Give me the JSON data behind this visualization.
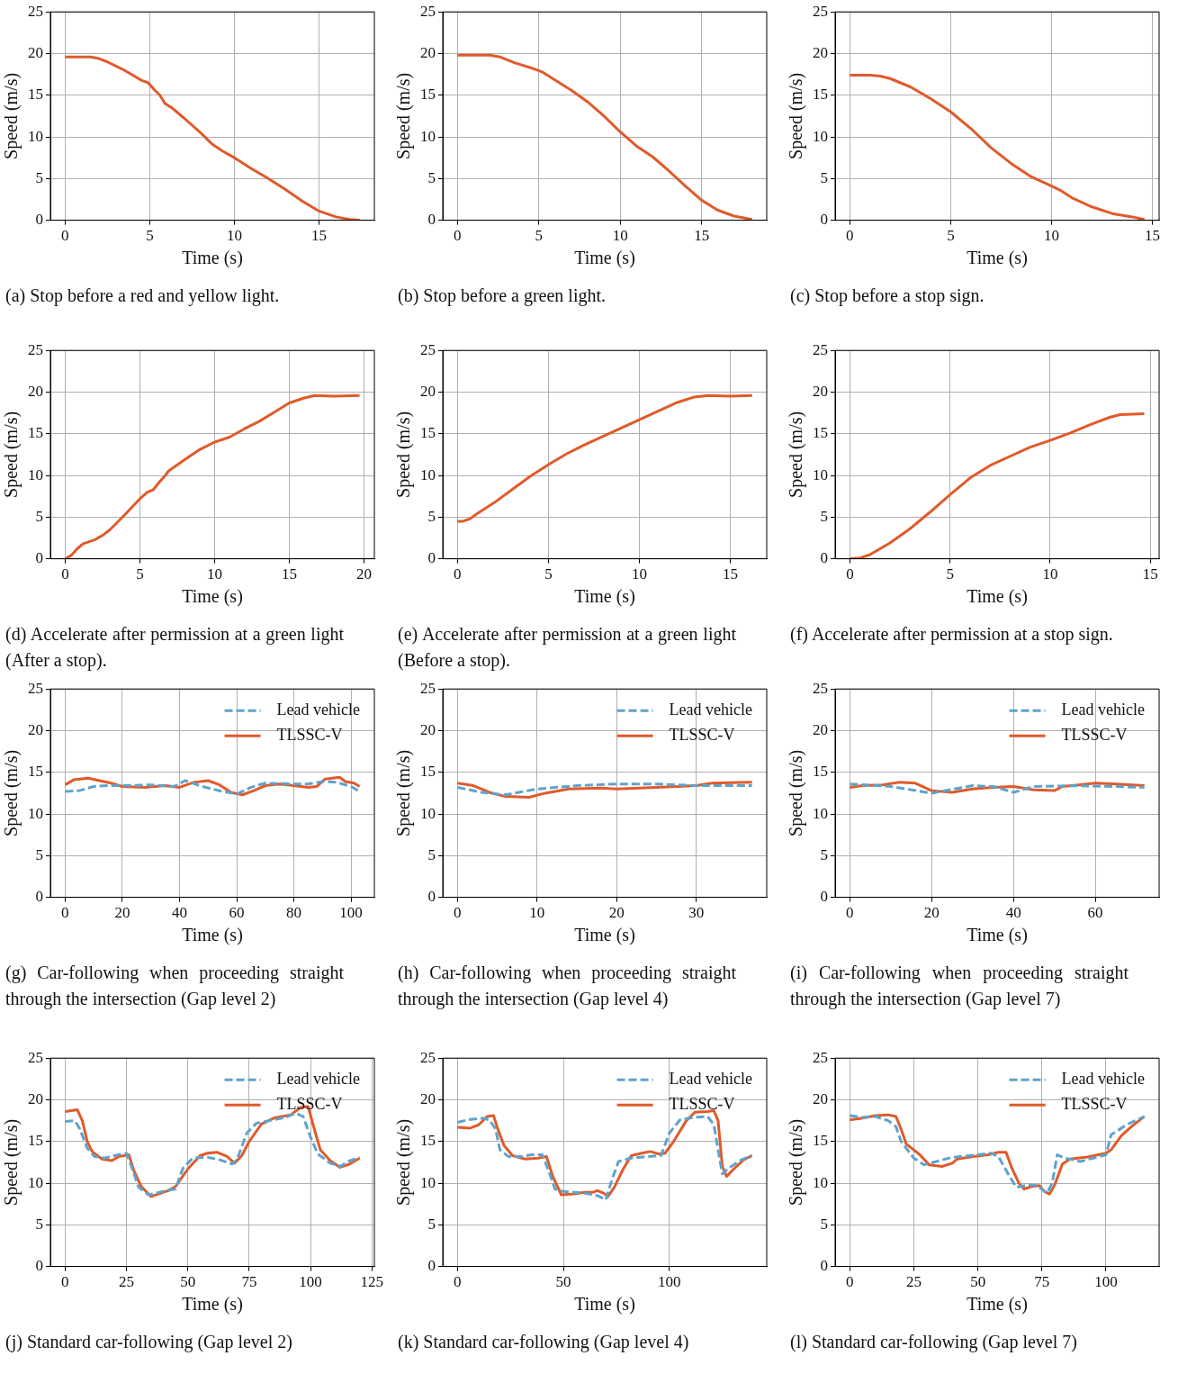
{
  "chart_data": [
    {
      "type": "line",
      "title": "(a) Stop before a red and yellow light.",
      "xlabel": "Time (s)",
      "ylabel": "Speed (m/s)",
      "xlim": [
        -0.87,
        18.27
      ],
      "xticks": [
        0,
        5,
        10,
        15
      ],
      "ylim": [
        0,
        25
      ],
      "yticks": [
        0,
        5,
        10,
        15,
        20,
        25
      ],
      "grid": true,
      "series": [
        {
          "color": "#e05a2b",
          "x": [
            0,
            1,
            1.5,
            2,
            2.5,
            3,
            3.5,
            4,
            4.5,
            4.9,
            5.3,
            5.6,
            5.9,
            6.3,
            7,
            8,
            8.7,
            9.3,
            10,
            11,
            12,
            13,
            14,
            15,
            16,
            16.8,
            17.4
          ],
          "values": [
            19.6,
            19.6,
            19.6,
            19.4,
            19.0,
            18.5,
            18.0,
            17.4,
            16.8,
            16.5,
            15.6,
            15.0,
            14.0,
            13.5,
            12.3,
            10.5,
            9.1,
            8.3,
            7.5,
            6.2,
            5.0,
            3.7,
            2.3,
            1.1,
            0.4,
            0.1,
            0
          ]
        }
      ]
    },
    {
      "type": "line",
      "title": "(b) Stop before a green light.",
      "xlabel": "Time (s)",
      "ylabel": "Speed (m/s)",
      "xlim": [
        -0.9,
        19.0
      ],
      "xticks": [
        0,
        5,
        10,
        15
      ],
      "ylim": [
        0,
        25
      ],
      "yticks": [
        0,
        5,
        10,
        15,
        20,
        25
      ],
      "grid": true,
      "series": [
        {
          "color": "#e05a2b",
          "x": [
            0,
            1,
            2,
            2.6,
            3.5,
            4.5,
            5.2,
            6,
            7,
            8,
            9,
            10,
            11,
            12,
            13,
            14,
            15,
            16,
            17,
            18.1
          ],
          "values": [
            19.8,
            19.8,
            19.8,
            19.6,
            18.9,
            18.3,
            17.8,
            16.8,
            15.6,
            14.2,
            12.5,
            10.6,
            8.9,
            7.6,
            5.9,
            4.1,
            2.4,
            1.2,
            0.5,
            0.1
          ]
        }
      ]
    },
    {
      "type": "line",
      "title": "(c) Stop before a stop sign.",
      "xlabel": "Time (s)",
      "ylabel": "Speed (m/s)",
      "xlim": [
        -0.73,
        15.33
      ],
      "xticks": [
        0,
        5,
        10,
        15
      ],
      "ylim": [
        0,
        25
      ],
      "yticks": [
        0,
        5,
        10,
        15,
        20,
        25
      ],
      "grid": true,
      "series": [
        {
          "color": "#e05a2b",
          "x": [
            0,
            1,
            1.5,
            2,
            3,
            4,
            5,
            6,
            7,
            8,
            9,
            10,
            10.5,
            11,
            12,
            13,
            14,
            14.6
          ],
          "values": [
            17.4,
            17.4,
            17.3,
            17.0,
            16.0,
            14.6,
            13.0,
            11.0,
            8.7,
            6.8,
            5.2,
            4.1,
            3.5,
            2.7,
            1.6,
            0.8,
            0.4,
            0.1
          ]
        }
      ]
    },
    {
      "type": "line",
      "title": "(d) Accelerate after permission at a green light (After a stop).",
      "xlabel": "Time (s)",
      "ylabel": "Speed (m/s)",
      "xlim": [
        -0.99,
        20.69
      ],
      "xticks": [
        0,
        5,
        10,
        15,
        20
      ],
      "ylim": [
        0,
        25
      ],
      "yticks": [
        0,
        5,
        10,
        15,
        20,
        25
      ],
      "grid": true,
      "series": [
        {
          "color": "#e05a2b",
          "x": [
            0,
            0.4,
            0.8,
            1.2,
            2,
            2.5,
            3,
            4,
            5,
            5.5,
            5.9,
            6.3,
            6.7,
            6.9,
            7.2,
            8,
            9,
            10,
            11,
            12,
            13,
            14,
            15,
            16,
            16.7,
            18,
            19.7
          ],
          "values": [
            0,
            0.4,
            1.2,
            1.8,
            2.3,
            2.8,
            3.5,
            5.3,
            7.2,
            8.0,
            8.3,
            9.2,
            10.0,
            10.5,
            10.9,
            11.9,
            13.1,
            14.0,
            14.6,
            15.6,
            16.5,
            17.6,
            18.7,
            19.3,
            19.6,
            19.5,
            19.6
          ]
        }
      ]
    },
    {
      "type": "line",
      "title": "(e) Accelerate after permission at a green light (Before a stop).",
      "xlabel": "Time (s)",
      "ylabel": "Speed (m/s)",
      "xlim": [
        -0.81,
        17.0
      ],
      "xticks": [
        0,
        5,
        10,
        15
      ],
      "ylim": [
        0,
        25
      ],
      "yticks": [
        0,
        5,
        10,
        15,
        20,
        25
      ],
      "grid": true,
      "series": [
        {
          "color": "#e05a2b",
          "x": [
            0,
            0.3,
            0.7,
            1,
            2,
            3,
            4,
            5,
            6,
            7,
            8,
            9,
            10,
            11,
            12,
            13,
            13.8,
            15,
            16.2
          ],
          "values": [
            4.5,
            4.5,
            4.8,
            5.3,
            6.7,
            8.3,
            9.9,
            11.3,
            12.6,
            13.7,
            14.7,
            15.7,
            16.7,
            17.7,
            18.7,
            19.4,
            19.6,
            19.5,
            19.6
          ]
        }
      ]
    },
    {
      "type": "line",
      "title": "(f) Accelerate after permission at a stop sign.",
      "xlabel": "Time (s)",
      "ylabel": "Speed (m/s)",
      "xlim": [
        -0.74,
        15.44
      ],
      "xticks": [
        0,
        5,
        10,
        15
      ],
      "ylim": [
        0,
        25
      ],
      "yticks": [
        0,
        5,
        10,
        15,
        20,
        25
      ],
      "grid": true,
      "series": [
        {
          "color": "#e05a2b",
          "x": [
            0,
            0.5,
            1,
            2,
            3,
            4,
            5,
            6,
            7,
            8,
            9,
            10,
            11,
            12,
            13,
            13.5,
            14.7
          ],
          "values": [
            0,
            0.1,
            0.5,
            1.9,
            3.6,
            5.6,
            7.7,
            9.7,
            11.2,
            12.3,
            13.4,
            14.2,
            15.1,
            16.1,
            17.0,
            17.3,
            17.4
          ]
        }
      ]
    },
    {
      "type": "line",
      "title": "(g) Car-following when proceeding straight through the intersection (Gap level 2)",
      "xlabel": "Time (s)",
      "ylabel": "Speed (m/s)",
      "xlim": [
        -5.15,
        108.15
      ],
      "xticks": [
        0,
        20,
        40,
        60,
        80,
        100
      ],
      "ylim": [
        0,
        25
      ],
      "yticks": [
        0,
        5,
        10,
        15,
        20,
        25
      ],
      "grid": true,
      "legend": "top right",
      "series": [
        {
          "name": "Lead vehicle",
          "color": "#5fa3cc",
          "line_style": "dashed",
          "x": [
            0,
            5,
            10,
            15,
            20,
            30,
            38,
            42,
            48,
            55,
            60,
            65,
            70,
            80,
            85,
            90,
            95,
            100,
            103
          ],
          "values": [
            12.7,
            12.8,
            13.3,
            13.4,
            13.4,
            13.5,
            13.3,
            14.0,
            13.3,
            12.7,
            12.4,
            13.2,
            13.7,
            13.6,
            13.6,
            13.9,
            13.8,
            13.3,
            12.7
          ]
        },
        {
          "name": "TLSSC-V",
          "color": "#e05a2b",
          "line_style": "solid",
          "x": [
            0,
            3,
            8,
            12,
            16,
            20,
            28,
            35,
            40,
            45,
            50,
            54,
            58,
            62,
            66,
            70,
            75,
            80,
            85,
            88,
            91,
            96,
            98,
            101,
            103
          ],
          "values": [
            13.5,
            14.1,
            14.3,
            14.0,
            13.7,
            13.3,
            13.2,
            13.4,
            13.2,
            13.8,
            14.0,
            13.5,
            12.6,
            12.3,
            12.8,
            13.4,
            13.6,
            13.4,
            13.2,
            13.3,
            14.2,
            14.4,
            13.9,
            13.7,
            13.3
          ]
        }
      ]
    },
    {
      "type": "line",
      "title": "(h) Car-following when proceeding straight through the intersection (Gap level 4)",
      "xlabel": "Time (s)",
      "ylabel": "Speed (m/s)",
      "xlim": [
        -1.85,
        38.85
      ],
      "xticks": [
        0,
        10,
        20,
        30
      ],
      "ylim": [
        0,
        25
      ],
      "yticks": [
        0,
        5,
        10,
        15,
        20,
        25
      ],
      "grid": true,
      "legend": "top right",
      "series": [
        {
          "name": "Lead vehicle",
          "color": "#5fa3cc",
          "line_style": "dashed",
          "x": [
            0,
            3,
            6,
            10,
            15,
            20,
            25,
            30,
            37
          ],
          "values": [
            13.2,
            12.6,
            12.3,
            13.0,
            13.4,
            13.6,
            13.6,
            13.4,
            13.4
          ]
        },
        {
          "name": "TLSSC-V",
          "color": "#e05a2b",
          "line_style": "solid",
          "x": [
            0,
            2,
            4,
            6,
            9,
            11,
            14,
            18,
            20,
            25,
            30,
            32,
            37
          ],
          "values": [
            13.7,
            13.4,
            12.6,
            12.1,
            12.0,
            12.5,
            13.0,
            13.1,
            13.0,
            13.2,
            13.4,
            13.7,
            13.8
          ]
        }
      ]
    },
    {
      "type": "line",
      "title": "(i) Car-following when proceeding straight through the intersection (Gap level 7)",
      "xlabel": "Time (s)",
      "ylabel": "Speed (m/s)",
      "xlim": [
        -3.6,
        75.6
      ],
      "xticks": [
        0,
        20,
        40,
        60
      ],
      "ylim": [
        0,
        25
      ],
      "yticks": [
        0,
        5,
        10,
        15,
        20,
        25
      ],
      "grid": true,
      "legend": "top right",
      "series": [
        {
          "name": "Lead vehicle",
          "color": "#5fa3cc",
          "line_style": "dashed",
          "x": [
            0,
            10,
            20,
            30,
            35,
            40,
            45,
            55,
            65,
            72
          ],
          "values": [
            13.6,
            13.3,
            12.5,
            13.4,
            13.3,
            12.6,
            13.3,
            13.4,
            13.3,
            13.2
          ]
        },
        {
          "name": "TLSSC-V",
          "color": "#e05a2b",
          "line_style": "solid",
          "x": [
            0,
            3,
            8,
            12,
            16,
            20,
            25,
            30,
            35,
            40,
            45,
            50,
            52,
            56,
            60,
            65,
            72
          ],
          "values": [
            13.2,
            13.4,
            13.5,
            13.8,
            13.7,
            12.8,
            12.6,
            13.0,
            13.2,
            13.3,
            12.9,
            12.8,
            13.3,
            13.5,
            13.7,
            13.6,
            13.4
          ]
        }
      ]
    },
    {
      "type": "line",
      "title": "(j) Standard car-following (Gap level 2)",
      "xlabel": "Time (s)",
      "ylabel": "Speed (m/s)",
      "xlim": [
        -6,
        126
      ],
      "xticks": [
        0,
        25,
        50,
        75,
        100,
        125
      ],
      "ylim": [
        0,
        25
      ],
      "yticks": [
        0,
        5,
        10,
        15,
        20,
        25
      ],
      "grid": true,
      "legend": "top right",
      "series": [
        {
          "name": "Lead vehicle",
          "color": "#5fa3cc",
          "line_style": "dashed",
          "x": [
            0,
            4,
            6,
            9,
            12,
            16,
            20,
            25,
            27,
            30,
            34,
            40,
            45,
            48,
            52,
            58,
            63,
            68,
            70,
            74,
            78,
            85,
            90,
            94,
            97,
            100,
            103,
            108,
            112,
            116,
            120
          ],
          "values": [
            17.4,
            17.5,
            16.5,
            14.2,
            13.2,
            13.0,
            13.3,
            13.6,
            12.0,
            9.5,
            8.6,
            9.0,
            9.3,
            11.8,
            13.0,
            13.1,
            12.8,
            12.3,
            12.8,
            16.0,
            17.2,
            17.6,
            17.9,
            18.4,
            18.0,
            15.5,
            13.5,
            12.4,
            12.0,
            12.7,
            13.1
          ]
        },
        {
          "name": "TLSSC-V",
          "color": "#e05a2b",
          "line_style": "solid",
          "x": [
            0,
            5,
            7,
            9,
            11,
            15,
            19,
            22,
            26,
            28,
            31,
            35,
            38,
            42,
            45,
            50,
            55,
            58,
            62,
            66,
            69,
            72,
            75,
            80,
            85,
            92,
            96,
            99,
            102,
            104,
            108,
            112,
            116,
            120
          ],
          "values": [
            18.6,
            18.8,
            17.5,
            15.0,
            13.8,
            12.9,
            12.7,
            13.2,
            13.4,
            11.5,
            9.6,
            8.4,
            8.7,
            9.1,
            9.6,
            11.7,
            13.3,
            13.6,
            13.7,
            13.2,
            12.4,
            13.3,
            15.0,
            17.1,
            17.8,
            18.2,
            19.1,
            19.2,
            16.0,
            14.0,
            12.7,
            11.9,
            12.3,
            13.0
          ]
        }
      ]
    },
    {
      "type": "line",
      "title": "(k) Standard car-following (Gap level 4)",
      "xlabel": "Time (s)",
      "ylabel": "Speed (m/s)",
      "xlim": [
        -6.95,
        145.95
      ],
      "xticks": [
        0,
        50,
        100
      ],
      "ylim": [
        0,
        25
      ],
      "yticks": [
        0,
        5,
        10,
        15,
        20,
        25
      ],
      "grid": true,
      "legend": "top right",
      "series": [
        {
          "name": "Lead vehicle",
          "color": "#5fa3cc",
          "line_style": "dashed",
          "x": [
            0,
            5,
            12,
            15,
            18,
            20,
            24,
            30,
            35,
            40,
            43,
            46,
            50,
            60,
            66,
            70,
            73,
            76,
            82,
            90,
            96,
            100,
            105,
            112,
            118,
            121,
            123,
            125,
            128,
            134,
            139
          ],
          "values": [
            17.3,
            17.6,
            17.8,
            17.6,
            16.5,
            14.0,
            13.2,
            13.2,
            13.4,
            13.4,
            11.5,
            9.3,
            9.0,
            8.8,
            8.5,
            8.0,
            10.5,
            12.6,
            13.0,
            13.2,
            13.3,
            16.0,
            17.6,
            17.9,
            18.0,
            17.0,
            14.0,
            11.1,
            11.8,
            12.8,
            13.3
          ]
        },
        {
          "name": "TLSSC-V",
          "color": "#e05a2b",
          "line_style": "solid",
          "x": [
            0,
            6,
            10,
            14,
            17,
            19,
            22,
            26,
            32,
            38,
            42,
            45,
            49,
            55,
            60,
            64,
            66,
            69,
            71,
            74,
            78,
            82,
            87,
            91,
            95,
            98,
            102,
            108,
            112,
            118,
            121,
            123,
            125,
            127,
            130,
            135,
            139
          ],
          "values": [
            16.7,
            16.6,
            17.0,
            18.0,
            18.1,
            16.5,
            14.5,
            13.3,
            12.9,
            13.0,
            13.2,
            10.8,
            8.6,
            8.7,
            8.9,
            8.9,
            9.1,
            8.8,
            8.4,
            9.5,
            11.6,
            13.3,
            13.6,
            13.8,
            13.5,
            13.6,
            15.0,
            17.5,
            18.5,
            18.6,
            18.7,
            17.5,
            12.0,
            10.8,
            11.6,
            12.8,
            13.3
          ]
        }
      ]
    },
    {
      "type": "line",
      "title": "(l) Standard car-following (Gap level 7)",
      "xlabel": "Time (s)",
      "ylabel": "Speed (m/s)",
      "xlim": [
        -5.75,
        120.75
      ],
      "xticks": [
        0,
        25,
        50,
        75,
        100
      ],
      "ylim": [
        0,
        25
      ],
      "yticks": [
        0,
        5,
        10,
        15,
        20,
        25
      ],
      "grid": true,
      "legend": "top right",
      "series": [
        {
          "name": "Lead vehicle",
          "color": "#5fa3cc",
          "line_style": "dashed",
          "x": [
            0,
            5,
            10,
            15,
            18,
            20,
            25,
            29,
            35,
            40,
            50,
            55,
            58,
            62,
            65,
            70,
            73,
            77,
            79,
            81,
            84,
            90,
            95,
            100,
            102,
            108,
            115
          ],
          "values": [
            18.1,
            17.9,
            18.0,
            17.5,
            16.8,
            15.0,
            13.0,
            12.2,
            12.7,
            13.1,
            13.4,
            13.6,
            13.2,
            11.0,
            9.5,
            9.8,
            9.7,
            8.8,
            10.0,
            13.4,
            13.0,
            12.6,
            13.0,
            13.4,
            15.8,
            17.0,
            18.0
          ]
        },
        {
          "name": "TLSSC-V",
          "color": "#e05a2b",
          "line_style": "solid",
          "x": [
            0,
            5,
            10,
            15,
            18,
            20,
            22,
            27,
            31,
            36,
            40,
            42,
            48,
            54,
            58,
            61,
            63,
            66,
            68,
            71,
            74,
            76,
            78,
            80,
            83,
            86,
            92,
            100,
            102,
            106,
            110,
            115
          ],
          "values": [
            17.6,
            17.8,
            18.1,
            18.2,
            18.0,
            16.5,
            14.7,
            13.5,
            12.2,
            12.0,
            12.4,
            12.9,
            13.2,
            13.4,
            13.7,
            13.7,
            12.0,
            10.0,
            9.3,
            9.6,
            9.7,
            9.0,
            8.7,
            9.8,
            12.3,
            12.9,
            13.1,
            13.6,
            14.0,
            15.7,
            16.8,
            18.0
          ]
        }
      ]
    }
  ]
}
